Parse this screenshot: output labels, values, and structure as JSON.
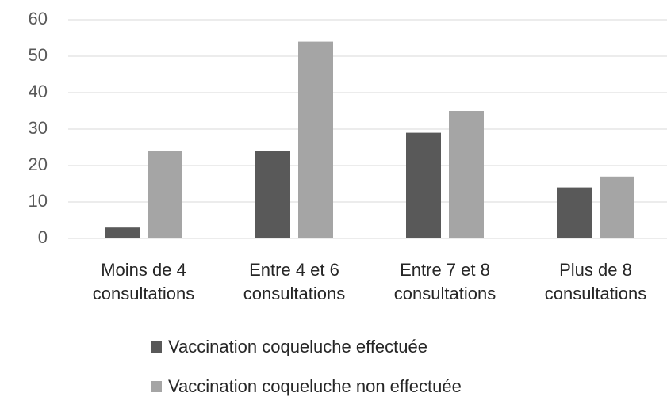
{
  "chart_data": {
    "type": "bar",
    "categories": [
      "Moins de 4 consultations",
      "Entre 4 et 6 consultations",
      "Entre 7 et 8 consultations",
      "Plus de 8 consultations"
    ],
    "series": [
      {
        "name": "Vaccination coqueluche effectuée",
        "color": "#595959",
        "values": [
          3,
          24,
          29,
          14
        ]
      },
      {
        "name": "Vaccination coqueluche non effectuée",
        "color": "#a5a5a5",
        "values": [
          24,
          54,
          35,
          17
        ]
      }
    ],
    "ylim": [
      0,
      60
    ],
    "yticks": [
      0,
      10,
      20,
      30,
      40,
      50,
      60
    ],
    "grid": true,
    "legend": "bottom"
  }
}
